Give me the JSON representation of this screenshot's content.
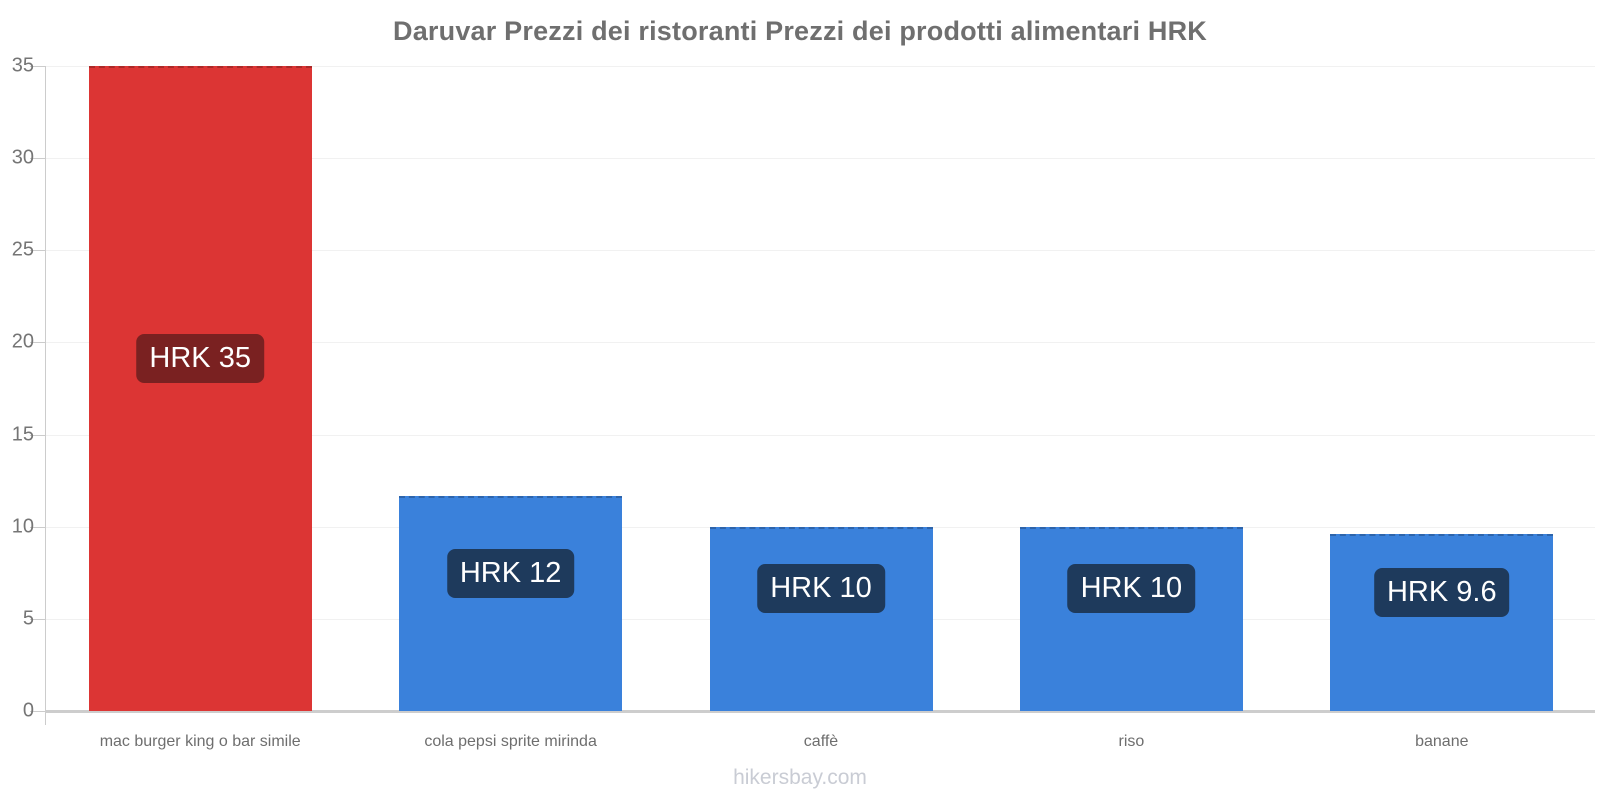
{
  "page": {
    "title": "Daruvar Prezzi dei ristoranti Prezzi dei prodotti alimentari HRK",
    "watermark": "hikersbay.com"
  },
  "chart_data": {
    "type": "bar",
    "title": "Daruvar Prezzi dei ristoranti Prezzi dei prodotti alimentari HRK",
    "currency": "HRK",
    "categories": [
      "mac burger king o bar simile",
      "cola pepsi sprite mirinda",
      "caffè",
      "riso",
      "banane"
    ],
    "values": [
      35,
      11.67,
      10,
      10,
      9.6
    ],
    "bar_labels": [
      "HRK 35",
      "HRK 12",
      "HRK 10",
      "HRK 10",
      "HRK 9.6"
    ],
    "bar_colors": [
      "#dc3534",
      "#3a81db",
      "#3a81db",
      "#3a81db",
      "#3a81db"
    ],
    "label_box_colors": [
      "#7a2121",
      "#1e3a5c",
      "#1e3a5c",
      "#1e3a5c",
      "#1e3a5c"
    ],
    "xlabel": "",
    "ylabel": "",
    "ylim": [
      0,
      35
    ],
    "yticks": [
      0,
      5,
      10,
      15,
      20,
      25,
      30,
      35
    ],
    "legend": "none",
    "grid": "faint-horizontal-gridlines"
  }
}
